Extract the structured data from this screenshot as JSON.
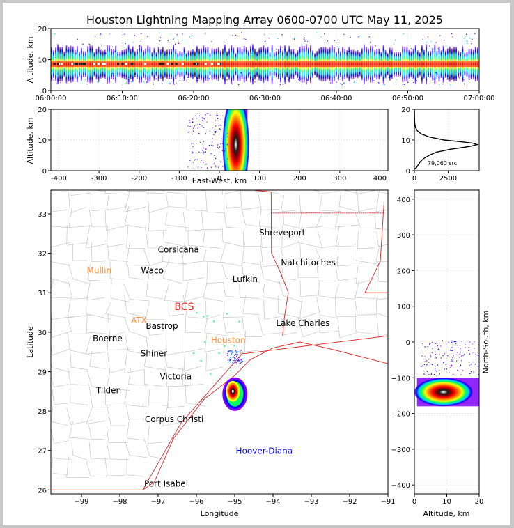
{
  "chart_data": [
    {
      "panel": "time-altitude",
      "type": "heatmap",
      "title": "Houston Lightning Mapping Array 0600-0700 UTC May 11, 2025",
      "xlabel": "",
      "ylabel": "Altitude, km",
      "x_ticks": [
        "06:00:00",
        "06:10:00",
        "06:20:00",
        "06:30:00",
        "06:40:00",
        "06:50:00",
        "07:00:00"
      ],
      "xlim": [
        "06:00:00",
        "07:00:00"
      ],
      "y_ticks": [
        0,
        10,
        20
      ],
      "ylim": [
        0,
        20
      ],
      "band_center_km": 8.5,
      "band_extent_km": [
        2,
        15
      ]
    },
    {
      "panel": "east-west-altitude",
      "type": "heatmap",
      "xlabel": "East-West, km",
      "ylabel": "Altitude, km",
      "x_ticks": [
        -400,
        -300,
        -200,
        -100,
        0,
        100,
        200,
        300,
        400
      ],
      "xlim": [
        -420,
        420
      ],
      "y_ticks": [
        0,
        10,
        20
      ],
      "ylim": [
        0,
        20
      ],
      "core": {
        "x_km": 37,
        "alt_km": 8.5
      },
      "x_extent_km": [
        20,
        70
      ]
    },
    {
      "panel": "altitude-histogram",
      "type": "line",
      "x_ticks": [
        0,
        2500
      ],
      "xlim": [
        0,
        4800
      ],
      "y_ticks": [
        0,
        10,
        20
      ],
      "ylim": [
        0,
        20
      ],
      "series": [
        {
          "alt": [
            0.5,
            1,
            2,
            3,
            4,
            5,
            6,
            7,
            7.5,
            8,
            8.5,
            9,
            9.5,
            10,
            11,
            12,
            13,
            14,
            15,
            16,
            17,
            18,
            19,
            20
          ],
          "count": [
            10,
            150,
            300,
            450,
            700,
            1100,
            1600,
            2700,
            3500,
            4200,
            4650,
            4300,
            3300,
            2200,
            1100,
            500,
            220,
            90,
            40,
            20,
            12,
            8,
            4,
            2
          ]
        }
      ],
      "annotation": "79,060 src"
    },
    {
      "panel": "plan-view-map",
      "type": "scatter",
      "xlabel": "Longitude",
      "ylabel": "Latitude",
      "x_ticks": [
        -99,
        -98,
        -97,
        -96,
        -95,
        -94,
        -93,
        -92,
        -91
      ],
      "xlim": [
        -99.8,
        -91
      ],
      "y_ticks": [
        26,
        27,
        28,
        29,
        30,
        31,
        32,
        33
      ],
      "ylim": [
        25.9,
        33.6
      ],
      "cities": [
        {
          "name": "Shreveport",
          "lon": -93.76,
          "lat": 32.52,
          "color": "#000000"
        },
        {
          "name": "Corsicana",
          "lon": -96.47,
          "lat": 32.09,
          "color": "#000000"
        },
        {
          "name": "Natchitoches",
          "lon": -93.08,
          "lat": 31.76,
          "color": "#000000"
        },
        {
          "name": "Mullin",
          "lon": -98.54,
          "lat": 31.56,
          "color": "#ff8c3c"
        },
        {
          "name": "Waco",
          "lon": -97.15,
          "lat": 31.56,
          "color": "#000000"
        },
        {
          "name": "Lufkin",
          "lon": -94.73,
          "lat": 31.34,
          "color": "#000000"
        },
        {
          "name": "BCS",
          "lon": -96.32,
          "lat": 30.63,
          "color": "#ff1a1a"
        },
        {
          "name": "ATX",
          "lon": -97.5,
          "lat": 30.3,
          "color": "#ff8c3c"
        },
        {
          "name": "Bastrop",
          "lon": -96.9,
          "lat": 30.16,
          "color": "#000000"
        },
        {
          "name": "Lake Charles",
          "lon": -93.22,
          "lat": 30.23,
          "color": "#000000"
        },
        {
          "name": "Boerne",
          "lon": -98.32,
          "lat": 29.84,
          "color": "#000000"
        },
        {
          "name": "Houston",
          "lon": -95.17,
          "lat": 29.79,
          "color": "#ff8c3c"
        },
        {
          "name": "Shiner",
          "lon": -97.11,
          "lat": 29.46,
          "color": "#000000"
        },
        {
          "name": "Victoria",
          "lon": -96.54,
          "lat": 28.88,
          "color": "#000000"
        },
        {
          "name": "Tilden",
          "lon": -98.29,
          "lat": 28.52,
          "color": "#000000"
        },
        {
          "name": "Corpus Christi",
          "lon": -96.58,
          "lat": 27.79,
          "color": "#000000"
        },
        {
          "name": "Hoover-Diana",
          "lon": -94.23,
          "lat": 26.99,
          "color": "#0000ff"
        },
        {
          "name": "Port Isabel",
          "lon": -96.79,
          "lat": 26.16,
          "color": "#000000"
        }
      ],
      "storm_core": {
        "lon": -95.05,
        "lat": 28.5
      }
    },
    {
      "panel": "altitude-north-south",
      "type": "heatmap",
      "xlabel": "Altitude, km",
      "ylabel": "North-South, km",
      "x_ticks": [
        0,
        10,
        20
      ],
      "xlim": [
        0,
        20
      ],
      "y_ticks": [
        -400,
        -300,
        -200,
        -100,
        0,
        100,
        200,
        300,
        400
      ],
      "ylim": [
        -425,
        425
      ],
      "core": {
        "alt_km": 9,
        "y_km": -140
      },
      "y_extent_km": [
        -180,
        -100
      ]
    }
  ],
  "colors": {
    "scale": [
      "#7f00ff",
      "#0000ff",
      "#00c8ff",
      "#00ff66",
      "#ffff00",
      "#ff8800",
      "#ff0000",
      "#880000",
      "#1a1a1a",
      "#ffffff"
    ],
    "state_border": "#dd2222",
    "county": "#bdbdbd",
    "histogram": "#000000"
  }
}
